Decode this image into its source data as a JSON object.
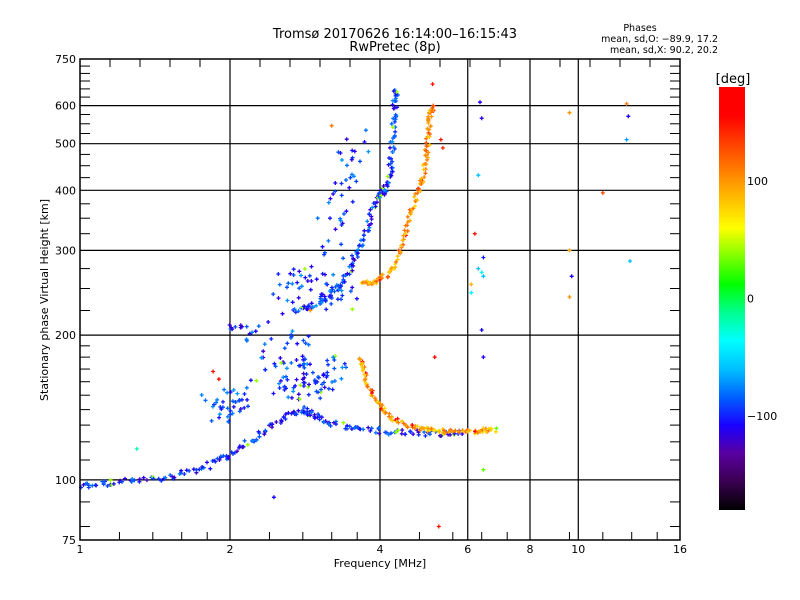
{
  "chart_data": {
    "type": "scatter",
    "title": "Tromsø 20170626 16:14:00–16:15:43",
    "subtitle": "RwPretec (8p)",
    "xlabel": "Frequency [MHz]",
    "ylabel": "Stationary phase Virtual Height [km]",
    "xscale": "log2",
    "yscale": "log",
    "xlim": [
      1,
      16
    ],
    "ylim": [
      75,
      750
    ],
    "x_ticks": [
      1,
      2,
      4,
      6,
      8,
      10,
      16
    ],
    "x_tick_labels": [
      "1",
      "2",
      "4",
      "6",
      "8",
      "10",
      "16"
    ],
    "x_grid": [
      2,
      4,
      6,
      8,
      10
    ],
    "y_ticks": [
      75,
      100,
      200,
      300,
      400,
      500,
      600,
      750
    ],
    "y_tick_labels": [
      "75",
      "100",
      "200",
      "300",
      "400",
      "500",
      "600",
      "750"
    ],
    "y_grid": [
      100,
      200,
      300,
      400,
      500,
      600
    ],
    "grid": true,
    "legend": {
      "title": "Phases",
      "line1": "mean, sd,O: −89.9, 17.2",
      "line2": "mean, sd,X:  90.2, 20.2",
      "placement": "top-right"
    },
    "colorbar": {
      "label": "[deg]",
      "range": [
        -180,
        180
      ],
      "ticks": [
        100,
        0,
        -100
      ],
      "tick_labels": [
        "100",
        "0",
        "−100"
      ],
      "colormap": [
        "#000000",
        "#3a0050",
        "#5a00a0",
        "#1a00ff",
        "#0060ff",
        "#00c0ff",
        "#00ffff",
        "#00ff90",
        "#00ff00",
        "#80ff00",
        "#ffff00",
        "#ffc000",
        "#ff8000",
        "#ff4000",
        "#ff0000",
        "#ff0000"
      ]
    },
    "traces": [
      {
        "name": "lower-x-trace",
        "phase": -100,
        "jitter": 0.03,
        "points": [
          [
            1.0,
            97
          ],
          [
            1.1,
            98
          ],
          [
            1.2,
            99
          ],
          [
            1.35,
            100
          ],
          [
            1.5,
            101
          ],
          [
            1.65,
            104
          ],
          [
            1.8,
            107
          ],
          [
            1.95,
            111
          ],
          [
            2.05,
            115
          ],
          [
            2.2,
            120
          ],
          [
            2.35,
            126
          ],
          [
            2.5,
            133
          ],
          [
            2.65,
            138
          ],
          [
            2.8,
            140
          ],
          [
            2.9,
            138
          ],
          [
            3.0,
            135
          ],
          [
            3.2,
            131
          ],
          [
            3.5,
            128
          ],
          [
            3.8,
            127
          ],
          [
            4.2,
            126
          ],
          [
            4.6,
            125.5
          ],
          [
            5.0,
            125
          ],
          [
            5.5,
            125
          ],
          [
            5.8,
            125
          ]
        ]
      },
      {
        "name": "upper-x-trace",
        "phase": -95,
        "jitter": 0.025,
        "points": [
          [
            2.7,
            225
          ],
          [
            2.85,
            228
          ],
          [
            3.0,
            232
          ],
          [
            3.15,
            240
          ],
          [
            3.3,
            252
          ],
          [
            3.45,
            268
          ],
          [
            3.55,
            285
          ],
          [
            3.65,
            305
          ],
          [
            3.75,
            330
          ],
          [
            3.85,
            360
          ],
          [
            3.95,
            388
          ],
          [
            4.05,
            395
          ],
          [
            4.12,
            405
          ],
          [
            4.18,
            430
          ],
          [
            4.22,
            470
          ],
          [
            4.25,
            520
          ],
          [
            4.27,
            570
          ],
          [
            4.29,
            620
          ],
          [
            4.3,
            650
          ]
        ]
      },
      {
        "name": "o-trace-lower",
        "phase": 95,
        "jitter": 0.02,
        "points": [
          [
            3.65,
            180
          ],
          [
            3.7,
            170
          ],
          [
            3.78,
            158
          ],
          [
            3.9,
            148
          ],
          [
            4.05,
            140
          ],
          [
            4.25,
            134
          ],
          [
            4.5,
            130
          ],
          [
            4.8,
            128
          ],
          [
            5.1,
            127
          ],
          [
            5.4,
            126
          ],
          [
            5.8,
            126
          ],
          [
            6.2,
            126
          ],
          [
            6.5,
            126.5
          ],
          [
            6.8,
            127
          ]
        ]
      },
      {
        "name": "o-trace-upper",
        "phase": 100,
        "jitter": 0.02,
        "points": [
          [
            3.7,
            258
          ],
          [
            3.8,
            255
          ],
          [
            3.95,
            260
          ],
          [
            4.15,
            268
          ],
          [
            4.3,
            280
          ],
          [
            4.45,
            310
          ],
          [
            4.55,
            340
          ],
          [
            4.65,
            370
          ],
          [
            4.78,
            400
          ],
          [
            4.88,
            430
          ],
          [
            4.95,
            470
          ],
          [
            5.0,
            510
          ],
          [
            5.03,
            550
          ],
          [
            5.05,
            580
          ],
          [
            5.1,
            600
          ]
        ]
      },
      {
        "name": "scatter-cluster-2-3mhz",
        "phase": -95,
        "jitter": 0.12,
        "points": [
          [
            1.85,
            145
          ],
          [
            1.9,
            140
          ],
          [
            2.0,
            138
          ],
          [
            2.05,
            146
          ],
          [
            2.1,
            150
          ],
          [
            2.45,
            175
          ],
          [
            2.55,
            160
          ],
          [
            2.65,
            150
          ],
          [
            2.7,
            180
          ],
          [
            2.75,
            195
          ],
          [
            2.8,
            165
          ],
          [
            2.9,
            155
          ],
          [
            3.0,
            160
          ],
          [
            3.1,
            150
          ],
          [
            3.2,
            170
          ],
          [
            3.3,
            175
          ],
          [
            2.05,
            200
          ],
          [
            2.2,
            198
          ],
          [
            2.6,
            240
          ],
          [
            2.75,
            255
          ],
          [
            2.9,
            270
          ],
          [
            3.1,
            250
          ],
          [
            3.3,
            235
          ],
          [
            3.5,
            240
          ],
          [
            3.2,
            320
          ],
          [
            3.3,
            370
          ],
          [
            3.4,
            410
          ],
          [
            3.5,
            470
          ],
          [
            3.6,
            520
          ]
        ]
      }
    ],
    "isolated_points": [
      [
        1.3,
        116,
        -20
      ],
      [
        1.85,
        168,
        150
      ],
      [
        1.9,
        162,
        160
      ],
      [
        2.45,
        92,
        -110
      ],
      [
        2.05,
        208,
        -90
      ],
      [
        2.5,
        268,
        -100
      ],
      [
        2.9,
        225,
        100
      ],
      [
        3.2,
        545,
        110
      ],
      [
        3.0,
        350,
        -80
      ],
      [
        3.3,
        480,
        -90
      ],
      [
        5.1,
        665,
        150
      ],
      [
        5.15,
        180,
        170
      ],
      [
        5.25,
        80,
        150
      ],
      [
        5.35,
        490,
        140
      ],
      [
        5.3,
        510,
        150
      ],
      [
        6.35,
        610,
        -110
      ],
      [
        6.4,
        565,
        -115
      ],
      [
        6.3,
        430,
        -60
      ],
      [
        6.2,
        325,
        150
      ],
      [
        6.3,
        275,
        -60
      ],
      [
        6.4,
        270,
        -30
      ],
      [
        6.4,
        205,
        -110
      ],
      [
        6.45,
        180,
        -110
      ],
      [
        6.45,
        290,
        -100
      ],
      [
        6.45,
        265,
        -60
      ],
      [
        6.1,
        255,
        90
      ],
      [
        6.1,
        245,
        -40
      ],
      [
        6.45,
        105,
        30
      ],
      [
        6.45,
        128,
        80
      ],
      [
        6.85,
        128,
        30
      ],
      [
        9.6,
        580,
        100
      ],
      [
        9.7,
        265,
        -110
      ],
      [
        9.6,
        300,
        95
      ],
      [
        9.6,
        240,
        100
      ],
      [
        11.2,
        395,
        130
      ],
      [
        12.5,
        605,
        110
      ],
      [
        12.6,
        570,
        -110
      ],
      [
        12.5,
        510,
        -70
      ],
      [
        12.7,
        285,
        -60
      ]
    ]
  }
}
